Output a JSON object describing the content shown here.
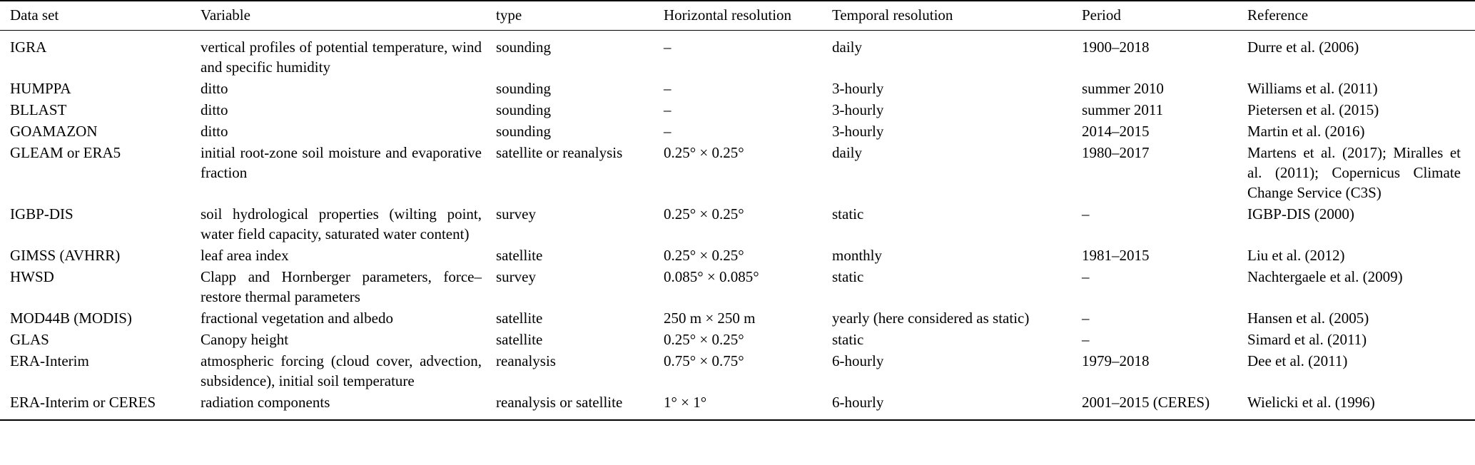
{
  "table": {
    "columns": [
      "Data set",
      "Variable",
      "type",
      "Horizontal resolution",
      "Temporal resolution",
      "Period",
      "Reference"
    ],
    "rows": [
      [
        "IGRA",
        "vertical profiles of potential temperature, wind and specific humidity",
        "sounding",
        "–",
        "daily",
        "1900–2018",
        "Durre et al. (2006)"
      ],
      [
        "HUMPPA",
        "ditto",
        "sounding",
        "–",
        "3-hourly",
        "summer 2010",
        "Williams et al. (2011)"
      ],
      [
        "BLLAST",
        "ditto",
        "sounding",
        "–",
        "3-hourly",
        "summer 2011",
        "Pietersen et al. (2015)"
      ],
      [
        "GOAMAZON",
        "ditto",
        "sounding",
        "–",
        "3-hourly",
        "2014–2015",
        "Martin et al. (2016)"
      ],
      [
        "GLEAM or ERA5",
        "initial root-zone soil moisture and evaporative fraction",
        "satellite or reanalysis",
        "0.25° × 0.25°",
        "daily",
        "1980–2017",
        "Martens et al. (2017); Miralles et al. (2011); Copernicus Climate Change Service (C3S)"
      ],
      [
        "IGBP-DIS",
        "soil hydrological properties (wilting point, water field capacity, saturated water content)",
        "survey",
        "0.25° × 0.25°",
        "static",
        "–",
        "IGBP-DIS (2000)"
      ],
      [
        "GIMSS (AVHRR)",
        "leaf area index",
        "satellite",
        "0.25° × 0.25°",
        "monthly",
        "1981–2015",
        "Liu et al. (2012)"
      ],
      [
        "HWSD",
        "Clapp and Hornberger parameters, force–restore thermal parameters",
        "survey",
        "0.085° × 0.085°",
        "static",
        "–",
        "Nachtergaele et al. (2009)"
      ],
      [
        "MOD44B (MODIS)",
        "fractional vegetation and albedo",
        "satellite",
        "250 m × 250 m",
        "yearly (here considered as static)",
        "–",
        "Hansen et al. (2005)"
      ],
      [
        "GLAS",
        "Canopy height",
        "satellite",
        "0.25° × 0.25°",
        "static",
        "–",
        "Simard et al. (2011)"
      ],
      [
        "ERA-Interim",
        "atmospheric forcing (cloud cover, advection, subsidence), initial soil temperature",
        "reanalysis",
        "0.75° × 0.75°",
        "6-hourly",
        "1979–2018",
        "Dee et al. (2011)"
      ],
      [
        "ERA-Interim or CERES",
        "radiation components",
        "reanalysis or satellite",
        "1° × 1°",
        "6-hourly",
        "2001–2015 (CERES)",
        "Wielicki et al. (1996)"
      ]
    ],
    "cell_names": [
      "cell-dataset",
      "cell-variable",
      "cell-type",
      "cell-horizontal-resolution",
      "cell-temporal-resolution",
      "cell-period",
      "cell-reference"
    ]
  }
}
